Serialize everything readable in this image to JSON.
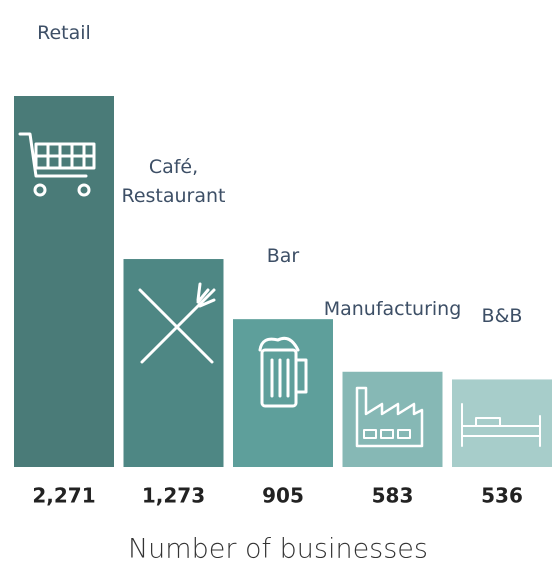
{
  "chart_data": {
    "type": "bar",
    "categories": [
      "Retail",
      "Café,\nRestaurant",
      "Bar",
      "Manufacturing",
      "B&B"
    ],
    "values": [
      2271,
      1273,
      905,
      583,
      536
    ],
    "value_labels": [
      "2,271",
      "1,273",
      "905",
      "583",
      "536"
    ],
    "colors": [
      "#4a7b78",
      "#4e8784",
      "#5e9f9b",
      "#86b8b5",
      "#a7cdca"
    ],
    "xlabel": "Number of businesses"
  }
}
